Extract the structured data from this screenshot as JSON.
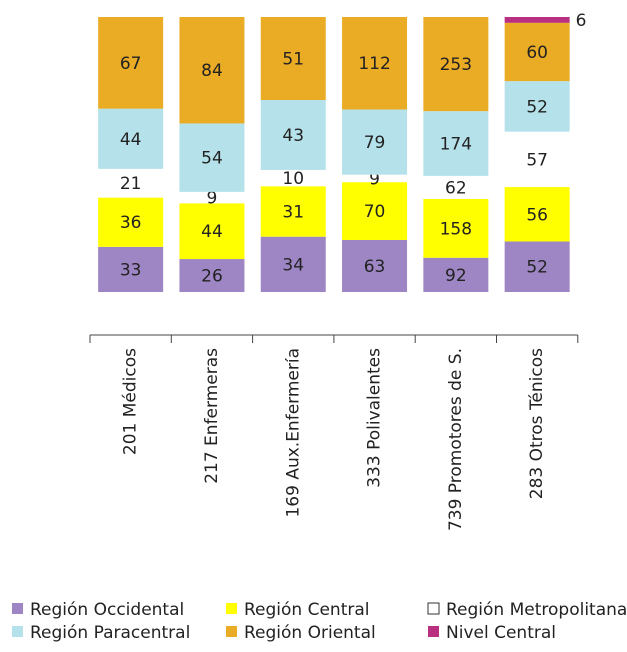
{
  "chart_data": {
    "type": "stacked_bar_100",
    "categories": [
      "201  Médicos",
      "217  Enfermeras",
      "169  Aux.Enfermería",
      "333  Polivalentes",
      "739  Promotores de S.",
      "283 Otros  Ténicos"
    ],
    "series": [
      {
        "name": "Región Occidental",
        "color": "#9e86c4",
        "values": [
          33,
          26,
          34,
          63,
          92,
          52
        ]
      },
      {
        "name": "Región Central",
        "color": "#ffff00",
        "values": [
          36,
          44,
          31,
          70,
          158,
          56
        ]
      },
      {
        "name": "Región Metropolitana",
        "color": "#ffffff",
        "values": [
          21,
          9,
          10,
          9,
          62,
          57
        ]
      },
      {
        "name": "Región Paracentral",
        "color": "#b5e2ea",
        "values": [
          44,
          54,
          43,
          79,
          174,
          52
        ]
      },
      {
        "name": "Región Oriental",
        "color": "#eaab25",
        "values": [
          67,
          84,
          51,
          112,
          253,
          60
        ]
      },
      {
        "name": "Nivel Central",
        "color": "#b8307f",
        "values": [
          null,
          null,
          null,
          null,
          null,
          6
        ]
      }
    ]
  }
}
